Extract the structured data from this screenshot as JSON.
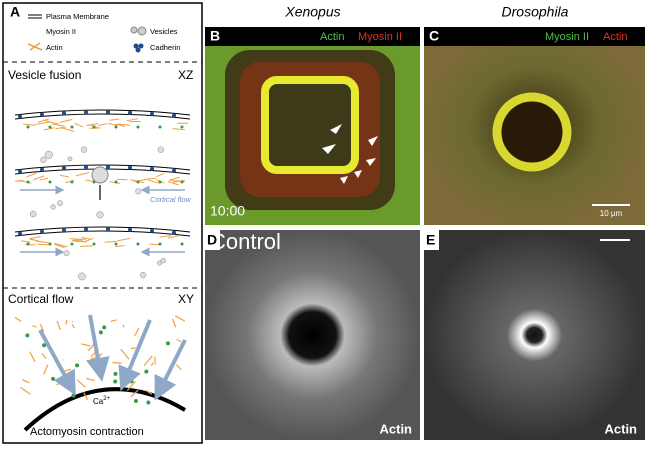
{
  "panel_a": {
    "letter": "A",
    "legend": {
      "membrane": "Plasma Membrane",
      "myosin": "Myosin II",
      "vesicles": "Vesicles",
      "actin": "Actin",
      "cadherin": "Cadherin"
    },
    "fusion": {
      "title": "Vesicle fusion",
      "plane": "XZ",
      "flow_label": "Cortical flow"
    },
    "flow": {
      "title": "Cortical flow",
      "plane": "XY",
      "ion": "Ca",
      "ion_charge": "2+",
      "caption": "Actomyosin contraction"
    }
  },
  "columns": {
    "left": "Xenopus",
    "right": "Drosophila"
  },
  "panel_b": {
    "letter": "B",
    "channel1": "Actin",
    "channel2": "Myosin II",
    "time": "10:00"
  },
  "panel_c": {
    "letter": "C",
    "channel1": "Myosin II",
    "channel2": "Actin",
    "scale": "10 μm"
  },
  "panel_d": {
    "letter": "D",
    "condition": "Control",
    "stain": "Actin"
  },
  "panel_e": {
    "letter": "E",
    "stain": "Actin"
  }
}
